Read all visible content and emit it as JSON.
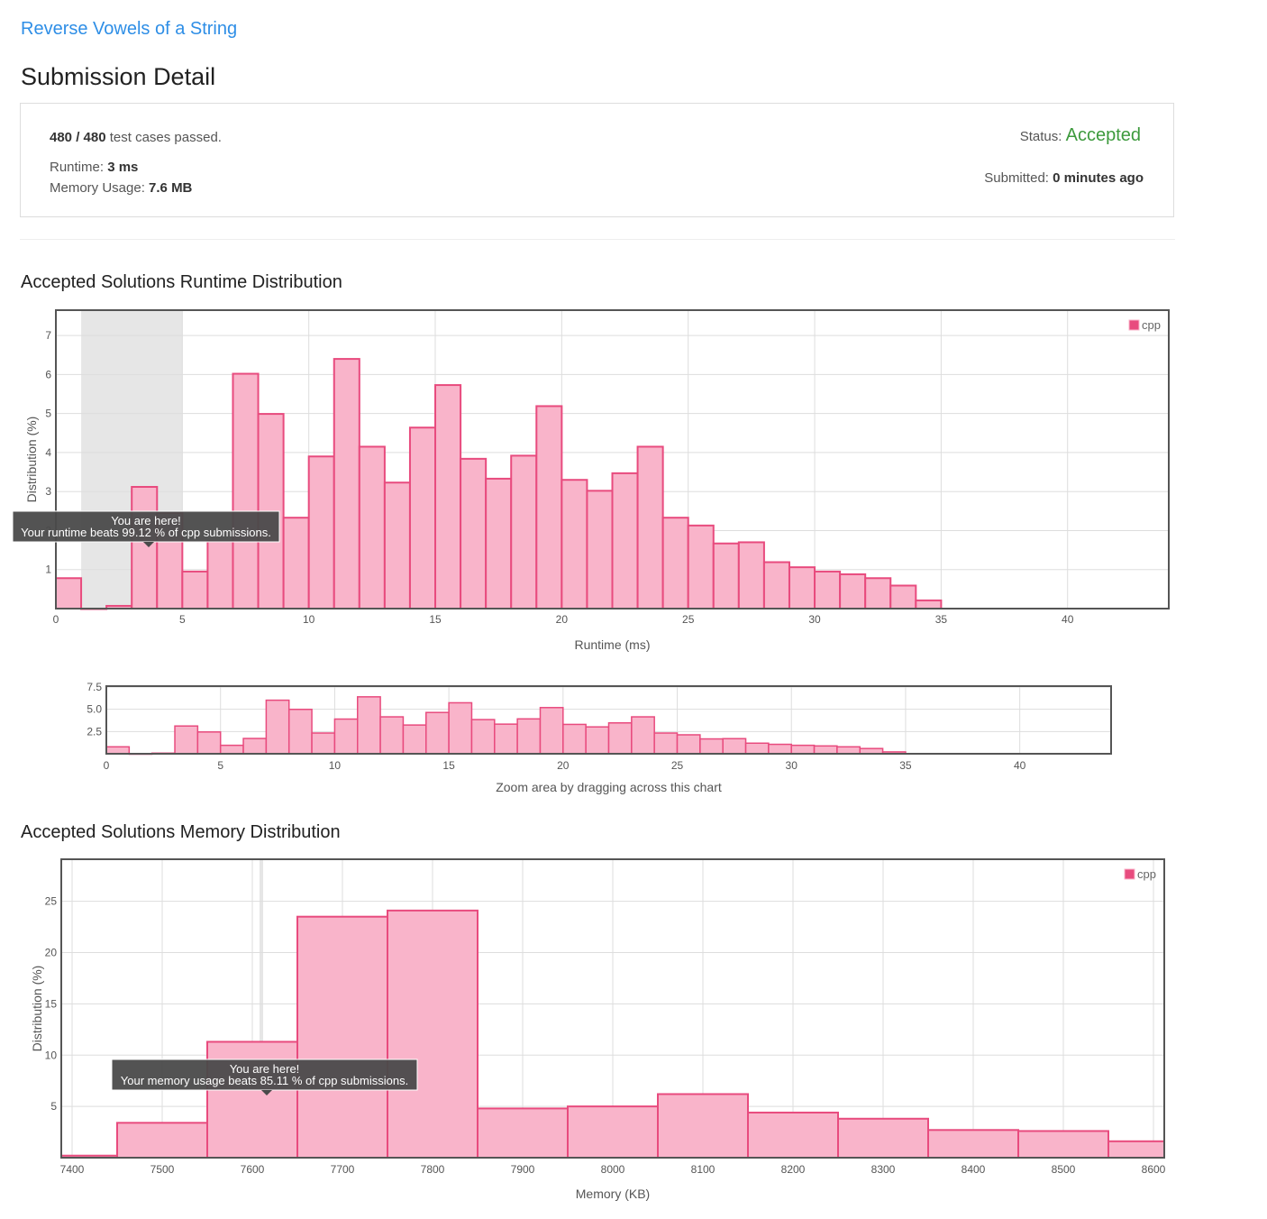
{
  "problem": {
    "title": "Reverse Vowels of a String"
  },
  "page": {
    "title": "Submission Detail"
  },
  "detail": {
    "passed": "480 / 480",
    "passed_suffix": "test cases passed.",
    "runtime_label": "Runtime:",
    "runtime_value": "3 ms",
    "memory_label": "Memory Usage:",
    "memory_value": "7.6 MB",
    "status_label": "Status:",
    "status_value": "Accepted",
    "submitted_label": "Submitted:",
    "submitted_value": "0 minutes ago"
  },
  "runtime_section": {
    "title": "Accepted Solutions Runtime Distribution"
  },
  "memory_section": {
    "title": "Accepted Solutions Memory Distribution"
  },
  "colors": {
    "bar_fill": "#f9b4ca",
    "bar_stroke": "#e84b7e",
    "accent": "#2e8ee6",
    "accepted": "#3d9a3d"
  },
  "chart_data": [
    {
      "id": "runtime",
      "type": "bar",
      "xlabel": "Runtime (ms)",
      "ylabel": "Distribution (%)",
      "xlim": [
        0,
        44
      ],
      "ylim": [
        0,
        7.65
      ],
      "xticks": [
        0,
        5,
        10,
        15,
        20,
        25,
        30,
        35,
        40
      ],
      "yticks": [
        1,
        2,
        3,
        4,
        5,
        6,
        7
      ],
      "grid": true,
      "legend": {
        "position": "top-right",
        "entries": [
          "cpp"
        ]
      },
      "highlight_range": [
        1,
        5
      ],
      "series": [
        {
          "name": "cpp",
          "bin_width": 1,
          "x": [
            0,
            1,
            2,
            3,
            4,
            5,
            6,
            7,
            8,
            9,
            10,
            11,
            12,
            13,
            14,
            15,
            16,
            17,
            18,
            19,
            20,
            21,
            22,
            23,
            24,
            25,
            26,
            27,
            28,
            29,
            30,
            31,
            32,
            33,
            34
          ],
          "values": [
            0.78,
            0,
            0.07,
            3.12,
            2.45,
            0.95,
            1.72,
            6.02,
            4.99,
            2.33,
            3.9,
            6.4,
            4.15,
            3.23,
            4.64,
            5.73,
            3.84,
            3.33,
            3.92,
            5.19,
            3.3,
            3.02,
            3.47,
            4.15,
            2.33,
            2.13,
            1.67,
            1.7,
            1.19,
            1.06,
            0.95,
            0.88,
            0.78,
            0.59,
            0.21
          ]
        }
      ],
      "tooltip": {
        "title": "You are here!",
        "text": "Your runtime beats 99.12 % of cpp submissions."
      }
    },
    {
      "id": "zoom",
      "type": "bar",
      "xlabel": "Zoom area by dragging across this chart",
      "xlim": [
        0,
        44
      ],
      "ylim": [
        0,
        7.6
      ],
      "xticks": [
        0,
        5,
        10,
        15,
        20,
        25,
        30,
        35,
        40
      ],
      "yticks": [
        2.5,
        5.0,
        7.5
      ],
      "ytick_labels": [
        "2.5",
        "5.0",
        "7.5"
      ],
      "grid": true,
      "series": [
        {
          "name": "cpp",
          "bin_width": 1,
          "x": [
            0,
            1,
            2,
            3,
            4,
            5,
            6,
            7,
            8,
            9,
            10,
            11,
            12,
            13,
            14,
            15,
            16,
            17,
            18,
            19,
            20,
            21,
            22,
            23,
            24,
            25,
            26,
            27,
            28,
            29,
            30,
            31,
            32,
            33,
            34
          ],
          "values": [
            0.78,
            0,
            0.07,
            3.12,
            2.45,
            0.95,
            1.72,
            6.02,
            4.99,
            2.33,
            3.9,
            6.4,
            4.15,
            3.23,
            4.64,
            5.73,
            3.84,
            3.33,
            3.92,
            5.19,
            3.3,
            3.02,
            3.47,
            4.15,
            2.33,
            2.13,
            1.67,
            1.7,
            1.19,
            1.06,
            0.95,
            0.88,
            0.78,
            0.59,
            0.21
          ]
        }
      ]
    },
    {
      "id": "memory",
      "type": "bar",
      "xlabel": "Memory (KB)",
      "ylabel": "Distribution (%)",
      "xlim": [
        7388,
        8612
      ],
      "ylim": [
        0,
        29.1
      ],
      "xticks": [
        7400,
        7500,
        7600,
        7700,
        7800,
        7900,
        8000,
        8100,
        8200,
        8300,
        8400,
        8500,
        8600
      ],
      "yticks": [
        5,
        10,
        15,
        20,
        25
      ],
      "grid": true,
      "legend": {
        "position": "top-right",
        "entries": [
          "cpp"
        ]
      },
      "highlight_range": [
        7608,
        7612
      ],
      "series": [
        {
          "name": "cpp",
          "bins": [
            [
              7388,
              7450
            ],
            [
              7450,
              7550
            ],
            [
              7550,
              7650
            ],
            [
              7650,
              7750
            ],
            [
              7750,
              7850
            ],
            [
              7850,
              7950
            ],
            [
              7950,
              8050
            ],
            [
              8050,
              8150
            ],
            [
              8150,
              8250
            ],
            [
              8250,
              8350
            ],
            [
              8350,
              8450
            ],
            [
              8450,
              8550
            ],
            [
              8550,
              8612
            ]
          ],
          "values": [
            0.2,
            3.4,
            11.3,
            23.5,
            24.1,
            4.8,
            5.0,
            6.2,
            4.4,
            3.8,
            2.7,
            2.6,
            1.6
          ]
        }
      ],
      "tooltip": {
        "title": "You are here!",
        "text": "Your memory usage beats 85.11 % of cpp submissions."
      }
    }
  ]
}
